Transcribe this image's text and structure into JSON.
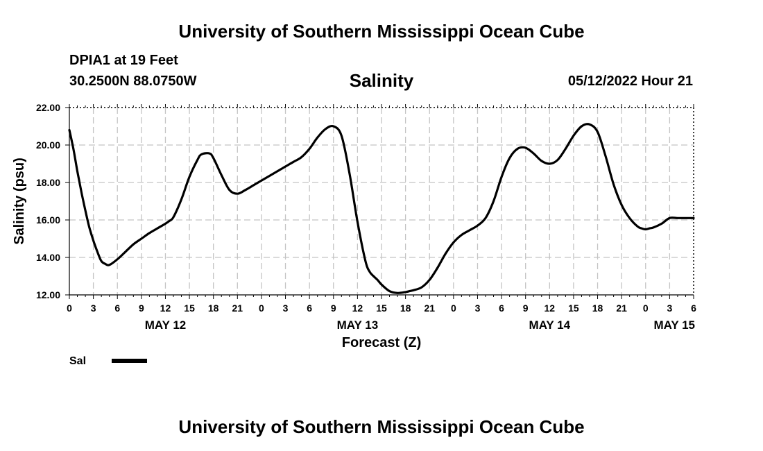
{
  "header": {
    "title": "University of Southern Mississippi Ocean Cube",
    "station": "DPIA1 at 19 Feet",
    "coordinates": "30.2500N  88.0750W",
    "variable": "Salinity",
    "timestamp": "05/12/2022 Hour 21"
  },
  "footer": {
    "title": "University of Southern Mississippi Ocean Cube"
  },
  "chart_data": {
    "type": "line",
    "title": "Salinity",
    "xlabel": "Forecast (Z)",
    "ylabel": "Salinity (psu)",
    "ylim": [
      12,
      22
    ],
    "xlim": [
      0,
      78
    ],
    "y_ticks": [
      "12.00",
      "14.00",
      "16.00",
      "18.00",
      "20.00",
      "22.00"
    ],
    "x_tick_labels": [
      "0",
      "3",
      "6",
      "9",
      "12",
      "15",
      "18",
      "21",
      "0",
      "3",
      "6",
      "9",
      "12",
      "15",
      "18",
      "21",
      "0",
      "3",
      "6",
      "9",
      "12",
      "15",
      "18",
      "21",
      "0",
      "3",
      "6"
    ],
    "date_labels": [
      {
        "label": "MAY 12",
        "hour": 12
      },
      {
        "label": "MAY 13",
        "hour": 36
      },
      {
        "label": "MAY 14",
        "hour": 60
      },
      {
        "label": "MAY 15",
        "hour": 78
      }
    ],
    "legend": [
      {
        "label": "Sal"
      }
    ],
    "grid": true,
    "series": [
      {
        "name": "Sal",
        "x": [
          0,
          0.5,
          1,
          1.5,
          2,
          2.5,
          3,
          3.5,
          4,
          4.5,
          5,
          6,
          7,
          8,
          9,
          10,
          11,
          12,
          12.5,
          13,
          14,
          15,
          16,
          16.5,
          17.5,
          18,
          19,
          20,
          21,
          22,
          23,
          24,
          25,
          26,
          27,
          28,
          29,
          30,
          31,
          32,
          33,
          34,
          35,
          36,
          37,
          37.5,
          38,
          38.5,
          39,
          40,
          41,
          42,
          42.5,
          43,
          44,
          45,
          46,
          47,
          48,
          49,
          50,
          51,
          52,
          53,
          54,
          55,
          56,
          57,
          58,
          59,
          60,
          61,
          62,
          63,
          64,
          65,
          66,
          67,
          68,
          69,
          70,
          71,
          71.5,
          72,
          72.5,
          73,
          74,
          75,
          76,
          77,
          78
        ],
        "values": [
          20.8,
          19.8,
          18.6,
          17.5,
          16.5,
          15.6,
          14.9,
          14.3,
          13.8,
          13.65,
          13.6,
          13.9,
          14.3,
          14.7,
          15.0,
          15.3,
          15.55,
          15.8,
          15.95,
          16.15,
          17.1,
          18.3,
          19.2,
          19.5,
          19.55,
          19.3,
          18.4,
          17.6,
          17.4,
          17.6,
          17.85,
          18.1,
          18.35,
          18.6,
          18.85,
          19.1,
          19.35,
          19.8,
          20.4,
          20.85,
          21.0,
          20.5,
          18.5,
          15.9,
          13.8,
          13.25,
          13.0,
          12.8,
          12.55,
          12.2,
          12.1,
          12.15,
          12.2,
          12.25,
          12.4,
          12.8,
          13.45,
          14.2,
          14.8,
          15.2,
          15.45,
          15.7,
          16.1,
          17.0,
          18.3,
          19.3,
          19.8,
          19.85,
          19.55,
          19.15,
          19.0,
          19.2,
          19.8,
          20.5,
          21.0,
          21.1,
          20.7,
          19.4,
          17.9,
          16.8,
          16.1,
          15.65,
          15.55,
          15.5,
          15.55,
          15.6,
          15.8,
          16.1,
          16.1,
          16.1,
          16.1
        ]
      }
    ]
  }
}
